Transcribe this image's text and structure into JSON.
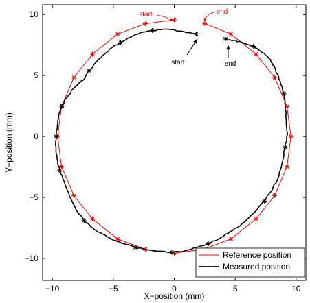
{
  "chart_data": {
    "type": "line",
    "xlabel": "X−position (mm)",
    "ylabel": "Y−position (mm)",
    "xlim": [
      -10.8,
      10.8
    ],
    "ylim": [
      -11.8,
      10.8
    ],
    "xticks": [
      -10,
      -5,
      0,
      5,
      10
    ],
    "yticks": [
      -10,
      -5,
      0,
      5,
      10
    ],
    "xtick_labels": [
      "−10",
      "−5",
      "0",
      "5",
      "10"
    ],
    "ytick_labels": [
      "−10",
      "−5",
      "0",
      "5",
      "10"
    ],
    "legend_position": "bottom-right",
    "series": [
      {
        "name": "Reference position",
        "color": "#ff0000",
        "marker": "asterisk",
        "x": [
          0.0,
          -2.38,
          -4.65,
          -6.71,
          -8.23,
          -9.25,
          -9.57,
          -9.25,
          -8.23,
          -6.71,
          -4.65,
          -2.38,
          0.0,
          2.38,
          4.65,
          6.71,
          8.23,
          9.25,
          9.57,
          9.25,
          8.23,
          6.71,
          4.65,
          2.5
        ],
        "y": [
          9.57,
          9.25,
          8.4,
          6.75,
          4.85,
          2.46,
          0.0,
          -2.46,
          -4.85,
          -6.75,
          -8.4,
          -9.25,
          -9.57,
          -9.25,
          -8.4,
          -6.75,
          -4.85,
          -2.46,
          0.0,
          2.46,
          4.85,
          6.75,
          8.4,
          9.27
        ]
      },
      {
        "name": "Measured position",
        "color": "#000000",
        "marker": "asterisk",
        "x": [
          1.8,
          0.8,
          -0.6,
          -1.8,
          -2.8,
          -3.7,
          -4.4,
          -5.1,
          -5.9,
          -6.5,
          -7.0,
          -7.4,
          -7.8,
          -8.3,
          -8.8,
          -9.2,
          -9.5,
          -9.6,
          -9.7,
          -9.7,
          -9.6,
          -9.4,
          -9.0,
          -8.6,
          -8.1,
          -7.4,
          -6.7,
          -5.9,
          -5.0,
          -4.1,
          -3.2,
          -2.2,
          -1.2,
          -0.2,
          0.8,
          1.8,
          2.8,
          3.8,
          4.8,
          5.8,
          6.6,
          7.4,
          8.1,
          8.6,
          8.9,
          9.1,
          9.3,
          9.2,
          9.1,
          9.0,
          8.7,
          8.3,
          7.9,
          7.2,
          6.5,
          5.6,
          4.9,
          4.4,
          4.2
        ],
        "y": [
          8.4,
          8.6,
          8.8,
          8.7,
          8.5,
          8.1,
          7.7,
          7.3,
          6.6,
          6.0,
          5.4,
          4.7,
          4.4,
          3.9,
          3.2,
          2.5,
          1.6,
          0.7,
          0.0,
          -0.9,
          -1.9,
          -2.8,
          -3.8,
          -4.9,
          -5.9,
          -6.9,
          -7.5,
          -8.0,
          -8.5,
          -8.8,
          -9.1,
          -9.3,
          -9.4,
          -9.5,
          -9.4,
          -9.1,
          -8.8,
          -8.3,
          -7.7,
          -7.0,
          -6.2,
          -5.3,
          -4.2,
          -3.2,
          -2.0,
          -0.9,
          0.2,
          1.3,
          2.5,
          3.5,
          4.5,
          5.5,
          6.3,
          6.9,
          7.4,
          7.7,
          7.9,
          7.9,
          8.0
        ],
        "marker_indices": [
          0,
          3,
          6,
          10,
          15,
          18,
          21,
          25,
          30,
          33,
          36,
          41,
          45,
          49,
          54,
          58
        ]
      }
    ],
    "annotations": [
      {
        "text": "start",
        "color": "#ff0000"
      },
      {
        "text": "end",
        "color": "#ff0000"
      },
      {
        "text": "start",
        "color": "#000000"
      },
      {
        "text": "end",
        "color": "#000000"
      }
    ]
  }
}
